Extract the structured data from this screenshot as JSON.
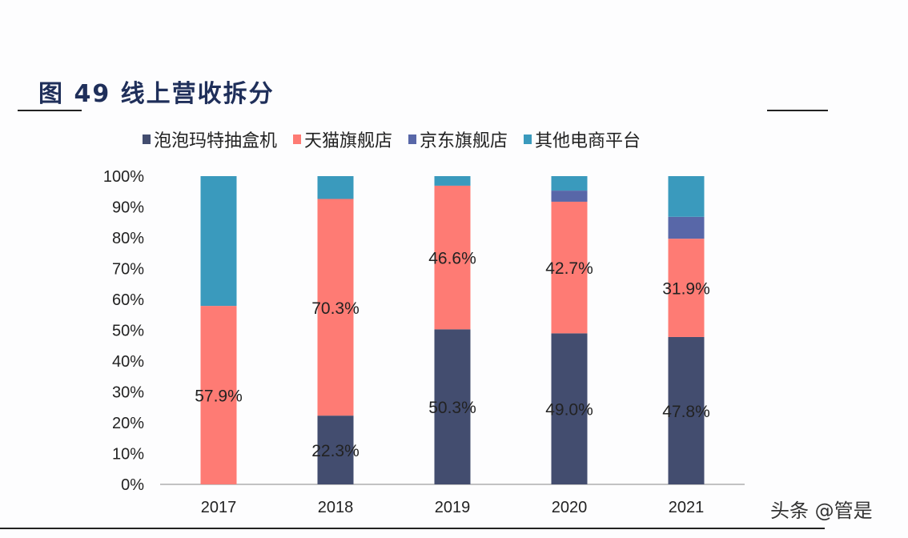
{
  "title": "图 49 线上营收拆分",
  "watermark": "头条 @管是",
  "chart_data": {
    "type": "bar",
    "stacked": true,
    "title": "图 49 线上营收拆分",
    "categories": [
      "2017",
      "2018",
      "2019",
      "2020",
      "2021"
    ],
    "series": [
      {
        "name": "泡泡玛特抽盒机",
        "color": "#434d6f",
        "values": [
          0,
          22.3,
          50.3,
          49.0,
          47.8
        ],
        "labels": [
          "",
          "22.3%",
          "50.3%",
          "49.0%",
          "47.8%"
        ]
      },
      {
        "name": "天猫旗舰店",
        "color": "#fe7b74",
        "values": [
          57.9,
          70.3,
          46.6,
          42.7,
          31.9
        ],
        "labels": [
          "57.9%",
          "70.3%",
          "46.6%",
          "42.7%",
          "31.9%"
        ]
      },
      {
        "name": "京东旗舰店",
        "color": "#5867a8",
        "values": [
          0,
          0,
          0,
          3.6,
          7.1
        ],
        "labels": [
          "",
          "",
          "",
          "",
          ""
        ]
      },
      {
        "name": "其他电商平台",
        "color": "#3a9abd",
        "values": [
          42.1,
          7.4,
          3.1,
          4.7,
          13.2
        ],
        "labels": [
          "",
          "",
          "",
          "",
          ""
        ]
      }
    ],
    "yticks": [
      "0%",
      "10%",
      "20%",
      "30%",
      "40%",
      "50%",
      "60%",
      "70%",
      "80%",
      "90%",
      "100%"
    ],
    "ylim": [
      0,
      100
    ],
    "grid": false,
    "legend": "top"
  }
}
